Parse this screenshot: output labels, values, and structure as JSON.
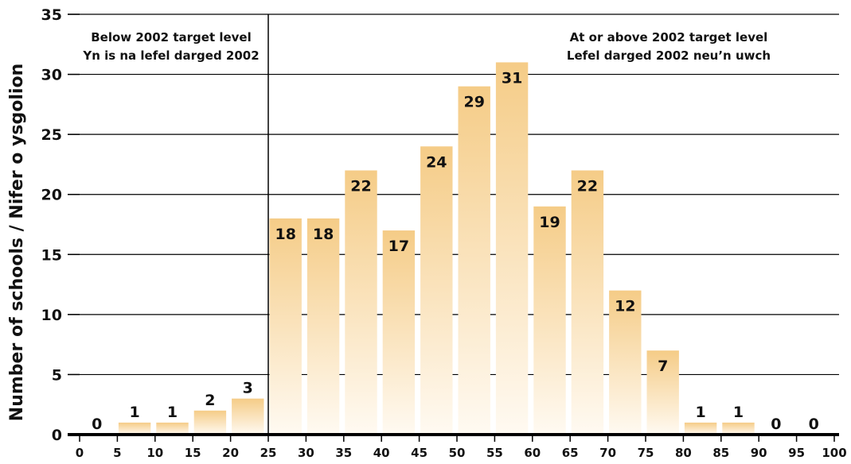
{
  "chart_data": {
    "type": "bar",
    "categories": [
      "0-5",
      "5-10",
      "10-15",
      "15-20",
      "20-25",
      "25-30",
      "30-35",
      "35-40",
      "40-45",
      "45-50",
      "50-55",
      "55-60",
      "60-65",
      "65-70",
      "70-75",
      "75-80",
      "80-85",
      "85-90",
      "90-95",
      "95-100"
    ],
    "values": [
      0,
      1,
      1,
      2,
      3,
      18,
      18,
      22,
      17,
      24,
      29,
      31,
      19,
      22,
      12,
      7,
      1,
      1,
      0,
      0
    ],
    "bar_labels": [
      "0",
      "1",
      "1",
      "2",
      "3",
      "18",
      "18",
      "22",
      "17",
      "24",
      "29",
      "31",
      "19",
      "22",
      "12",
      "7",
      "1",
      "1",
      "0",
      "0"
    ],
    "x_ticks": [
      "0",
      "5",
      "10",
      "15",
      "20",
      "25",
      "30",
      "35",
      "40",
      "45",
      "50",
      "55",
      "60",
      "65",
      "70",
      "75",
      "80",
      "85",
      "90",
      "95",
      "100"
    ],
    "y_ticks": [
      "0",
      "5",
      "10",
      "15",
      "20",
      "25",
      "30",
      "35"
    ],
    "ylabel": "Number of schools / Nifer o ysgolion",
    "xlabel": "",
    "title": "",
    "xlim": [
      0,
      100
    ],
    "ylim": [
      0,
      35
    ],
    "grid": true,
    "target_line_x": 25,
    "annotations": {
      "below": [
        "Below 2002 target level",
        "Yn is na lefel darged 2002"
      ],
      "above": [
        "At or above 2002 target level",
        "Lefel darged 2002 neu’n uwch"
      ]
    },
    "colors": {
      "bar_top": "#f5cc87",
      "bar_bottom": "#fffaf2"
    }
  }
}
